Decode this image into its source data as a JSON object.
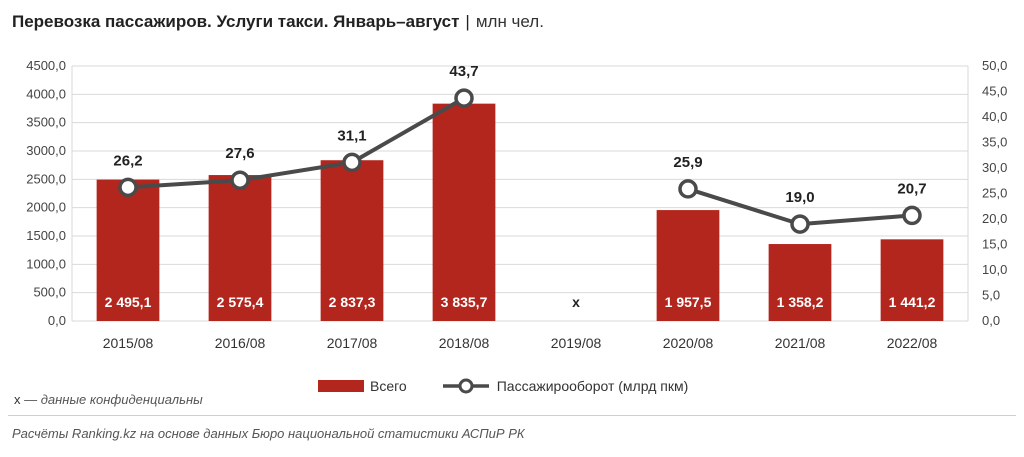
{
  "title": {
    "main": "Перевозка пассажиров. Услуги такси. Январь–август",
    "separator": "|",
    "unit": "млн чел."
  },
  "chart_data": {
    "type": "bar",
    "categories": [
      "2015/08",
      "2016/08",
      "2017/08",
      "2018/08",
      "2019/08",
      "2020/08",
      "2021/08",
      "2022/08"
    ],
    "series": [
      {
        "name": "Всего",
        "type": "bar",
        "axis": "left",
        "values": [
          2495.1,
          2575.4,
          2837.3,
          3835.7,
          null,
          1957.5,
          1358.2,
          1441.2
        ],
        "labels": [
          "2 495,1",
          "2 575,4",
          "2 837,3",
          "3 835,7",
          "x",
          "1 957,5",
          "1 358,2",
          "1 441,2"
        ],
        "color": "#b3261e"
      },
      {
        "name": "Пассажирооборот (млрд пкм)",
        "type": "line",
        "axis": "right",
        "values": [
          26.2,
          27.6,
          31.1,
          43.7,
          null,
          25.9,
          19.0,
          20.7
        ],
        "labels": [
          "26,2",
          "27,6",
          "31,1",
          "43,7",
          "",
          "25,9",
          "19,0",
          "20,7"
        ],
        "color": "#4a4a4a"
      }
    ],
    "y_left": {
      "range": [
        0,
        4500
      ],
      "ticks": [
        "0,0",
        "500,0",
        "1000,0",
        "1500,0",
        "2000,0",
        "2500,0",
        "3000,0",
        "3500,0",
        "4000,0",
        "4500,0"
      ]
    },
    "y_right": {
      "range": [
        0,
        50
      ],
      "ticks": [
        "0,0",
        "5,0",
        "10,0",
        "15,0",
        "20,0",
        "25,0",
        "30,0",
        "35,0",
        "40,0",
        "45,0",
        "50,0"
      ]
    },
    "grid": true,
    "legend_position": "bottom"
  },
  "legend": {
    "bar_label": "Всего",
    "line_label": "Пассажирооборот (млрд пкм)"
  },
  "note": {
    "symbol": "х",
    "text": " — данные конфиденциальны"
  },
  "source": "Расчёты Ranking.kz на основе данных Бюро национальной статистики АСПиР РК"
}
